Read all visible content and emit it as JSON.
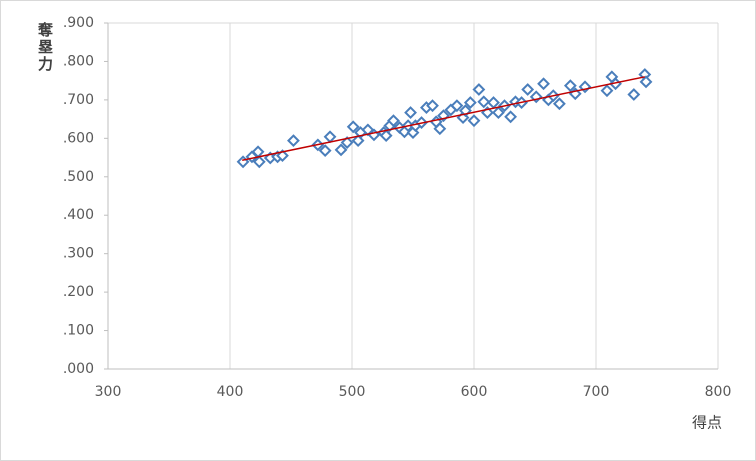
{
  "chart_data": {
    "type": "scatter",
    "x_label": "得点",
    "y_label": "奪塁力",
    "xlim": [
      300,
      800
    ],
    "xticks": [
      300,
      400,
      500,
      600,
      700,
      800
    ],
    "ylim": [
      0,
      0.9
    ],
    "yticks": [
      {
        "value": 0,
        "label": ".000"
      },
      {
        "value": 0.1,
        "label": ".100"
      },
      {
        "value": 0.2,
        "label": ".200"
      },
      {
        "value": 0.3,
        "label": ".300"
      },
      {
        "value": 0.4,
        "label": ".400"
      },
      {
        "value": 0.5,
        "label": ".500"
      },
      {
        "value": 0.6,
        "label": ".600"
      },
      {
        "value": 0.7,
        "label": ".700"
      },
      {
        "value": 0.8,
        "label": ".800"
      },
      {
        "value": 0.9,
        "label": ".900"
      }
    ],
    "grid": "x",
    "color": "#4a7ebb",
    "x": [
      410.7,
      418,
      423,
      424,
      433,
      439,
      443,
      452,
      472,
      478,
      482,
      491,
      496,
      501,
      505,
      507,
      513,
      518,
      526,
      528,
      531,
      534,
      539,
      543,
      546,
      548,
      550,
      552,
      557,
      561,
      566,
      569,
      572,
      575,
      581,
      586,
      591,
      593,
      597,
      600,
      604,
      608,
      611,
      616,
      620,
      625,
      630,
      634,
      639,
      644,
      651,
      657,
      661,
      665,
      670,
      679,
      683,
      691,
      709,
      713,
      716,
      731,
      740,
      741
    ],
    "values": [
      0.539,
      0.552,
      0.565,
      0.539,
      0.549,
      0.552,
      0.555,
      0.594,
      0.583,
      0.568,
      0.604,
      0.57,
      0.589,
      0.63,
      0.594,
      0.615,
      0.622,
      0.609,
      0.615,
      0.607,
      0.633,
      0.646,
      0.628,
      0.617,
      0.633,
      0.667,
      0.615,
      0.633,
      0.641,
      0.68,
      0.685,
      0.643,
      0.625,
      0.659,
      0.674,
      0.685,
      0.654,
      0.672,
      0.693,
      0.646,
      0.727,
      0.695,
      0.667,
      0.693,
      0.667,
      0.685,
      0.656,
      0.695,
      0.693,
      0.727,
      0.708,
      0.742,
      0.7,
      0.711,
      0.69,
      0.737,
      0.716,
      0.734,
      0.724,
      0.76,
      0.742,
      0.714,
      0.766,
      0.747
    ],
    "trendline": {
      "x": [
        410,
        740
      ],
      "values": [
        0.543,
        0.76
      ],
      "color": "#c00000"
    }
  }
}
